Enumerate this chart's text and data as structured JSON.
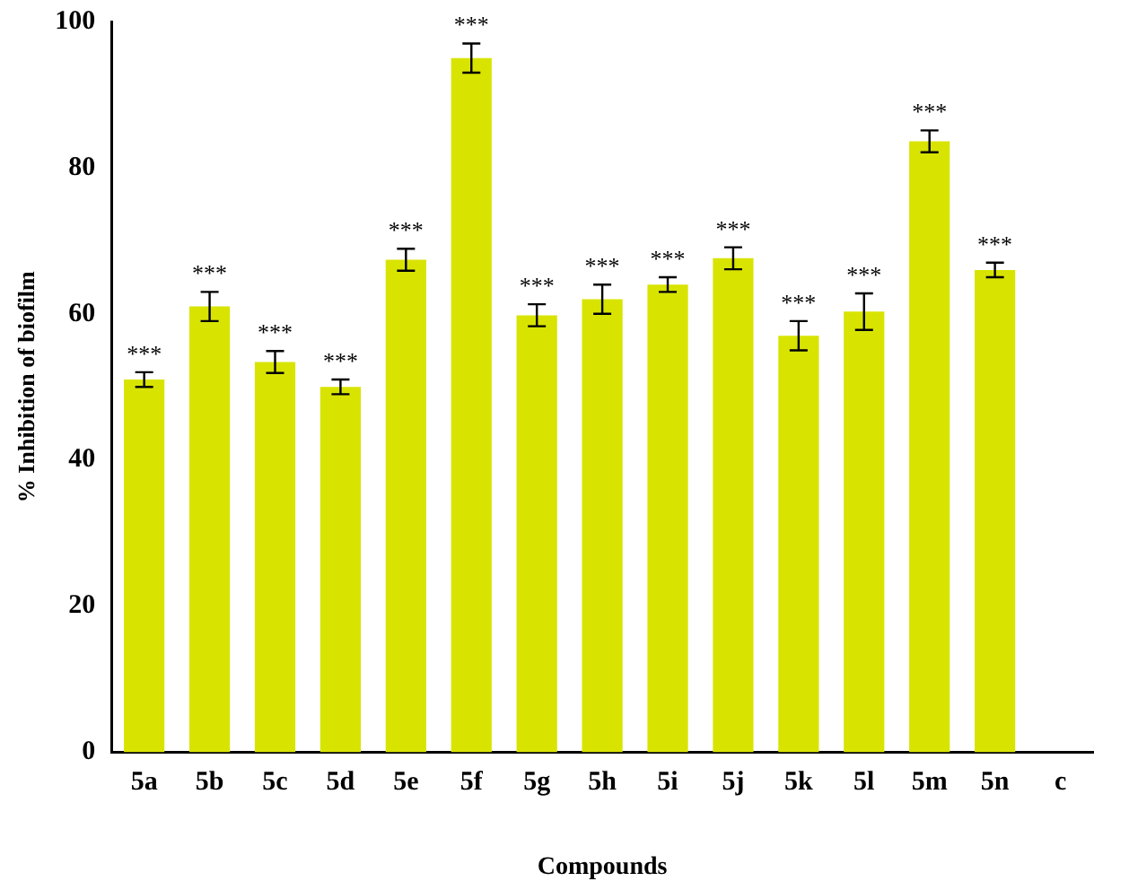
{
  "chart_data": {
    "type": "bar",
    "xlabel": "Compounds",
    "ylabel": "% Inhibition of biofilm",
    "categories": [
      "5a",
      "5b",
      "5c",
      "5d",
      "5e",
      "5f",
      "5g",
      "5h",
      "5i",
      "5j",
      "5k",
      "5l",
      "5m",
      "5n",
      "c"
    ],
    "values": [
      51,
      61,
      53.4,
      50,
      67.4,
      95,
      59.8,
      62,
      64,
      67.6,
      57,
      60.3,
      83.6,
      66,
      0
    ],
    "errors": [
      1,
      2,
      1.5,
      1,
      1.5,
      2,
      1.5,
      2,
      1,
      1.5,
      2,
      2.5,
      1.5,
      1,
      null
    ],
    "value_labels": [
      "***",
      "***",
      "***",
      "***",
      "***",
      "***",
      "***",
      "***",
      "***",
      "***",
      "***",
      "***",
      "***",
      "***",
      null
    ],
    "color": "#d8e400",
    "ylim": [
      0,
      100
    ],
    "yticks": [
      0,
      20,
      40,
      60,
      80,
      100
    ],
    "grid": false,
    "legend": false
  }
}
